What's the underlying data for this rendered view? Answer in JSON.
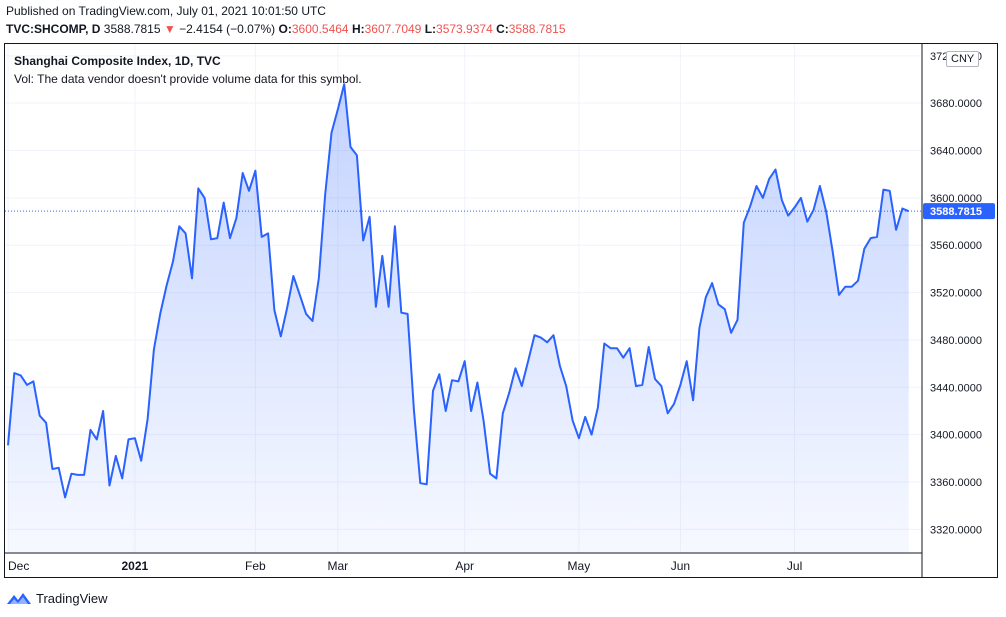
{
  "header": {
    "published": "Published on TradingView.com, July 01, 2021 10:01:50 UTC",
    "symbol": "TVC:SHCOMP, D",
    "last": "3588.7815",
    "change": "−2.4154 (−0.07%)",
    "o_label": "O:",
    "o_value": "3600.5464",
    "h_label": "H:",
    "h_value": "3607.7049",
    "l_label": "L:",
    "l_value": "3573.9374",
    "c_label": "C:",
    "c_value": "3588.7815"
  },
  "legend": {
    "title": "Shanghai Composite Index, 1D, TVC",
    "vol_note": "Vol: The data vendor doesn't provide volume data for this symbol."
  },
  "currency": "CNY",
  "brand": "TradingView",
  "colors": {
    "line": "#2962ff",
    "area_top": "#2962ff",
    "negative": "#ef5350",
    "grid": "#f0f3fa",
    "price_tag": "#2962ff"
  },
  "icons": {
    "down_arrow": "triangle-down-icon",
    "logo": "tradingview-logo-icon"
  },
  "chart_data": {
    "type": "area",
    "title": "Shanghai Composite Index, 1D, TVC",
    "ylim": [
      3300,
      3730
    ],
    "y_ticks": [
      {
        "value": 3320,
        "label": "3320.0000"
      },
      {
        "value": 3360,
        "label": "3360.0000"
      },
      {
        "value": 3400,
        "label": "3400.0000"
      },
      {
        "value": 3440,
        "label": "3440.0000"
      },
      {
        "value": 3480,
        "label": "3480.0000"
      },
      {
        "value": 3520,
        "label": "3520.0000"
      },
      {
        "value": 3560,
        "label": "3560.0000"
      },
      {
        "value": 3600,
        "label": "3600.0000"
      },
      {
        "value": 3640,
        "label": "3640.0000"
      },
      {
        "value": 3680,
        "label": "3680.0000"
      },
      {
        "value": 3720,
        "label": "3720.0000"
      }
    ],
    "x_ticks": [
      {
        "index": 0,
        "label": "Dec"
      },
      {
        "index": 20,
        "label": "2021"
      },
      {
        "index": 39,
        "label": "Feb"
      },
      {
        "index": 52,
        "label": "Mar"
      },
      {
        "index": 72,
        "label": "Apr"
      },
      {
        "index": 90,
        "label": "May"
      },
      {
        "index": 106,
        "label": "Jun"
      },
      {
        "index": 124,
        "label": "Jul"
      }
    ],
    "x_max_index": 134,
    "last_price": {
      "value": 3588.7815,
      "label": "3588.7815"
    },
    "values": [
      3391,
      3452,
      3450,
      3442,
      3445,
      3416,
      3410,
      3371,
      3372,
      3347,
      3367,
      3366,
      3366,
      3404,
      3396,
      3420,
      3357,
      3382,
      3363,
      3396,
      3397,
      3378,
      3413,
      3472,
      3502,
      3526,
      3546,
      3576,
      3570,
      3532,
      3608,
      3600,
      3565,
      3566,
      3596,
      3566,
      3583,
      3621,
      3606,
      3623,
      3567,
      3570,
      3505,
      3483,
      3507,
      3534,
      3518,
      3502,
      3496,
      3532,
      3603,
      3655,
      3675,
      3696,
      3643,
      3636,
      3564,
      3584,
      3508,
      3551,
      3508,
      3576,
      3503,
      3502,
      3420,
      3359,
      3358,
      3437,
      3451,
      3420,
      3446,
      3445,
      3462,
      3420,
      3444,
      3411,
      3367,
      3363,
      3418,
      3435,
      3456,
      3441,
      3462,
      3484,
      3482,
      3478,
      3484,
      3458,
      3441,
      3412,
      3397,
      3415,
      3400,
      3423,
      3477,
      3473,
      3473,
      3465,
      3473,
      3441,
      3442,
      3474,
      3447,
      3441,
      3418,
      3426,
      3442,
      3462,
      3429,
      3490,
      3516,
      3528,
      3510,
      3506,
      3486,
      3497,
      3579,
      3593,
      3610,
      3600,
      3616,
      3624,
      3598,
      3585,
      3592,
      3600,
      3580,
      3590,
      3610,
      3588,
      3555,
      3518,
      3525,
      3525,
      3530,
      3557,
      3566,
      3567,
      3607,
      3606,
      3573,
      3591,
      3588.78
    ]
  }
}
